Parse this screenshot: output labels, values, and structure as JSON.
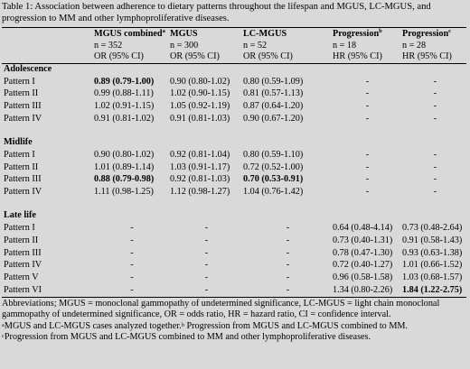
{
  "caption": "Table 1: Association between adherence to dietary patterns throughout the lifespan and MGUS, LC-MGUS, and progression to MM and other lymphoproliferative diseases.",
  "columns": [
    {
      "label": "MGUS combined",
      "sup": "a",
      "n": "n = 352",
      "stat": "OR (95% CI)"
    },
    {
      "label": "MGUS",
      "sup": "",
      "n": "n = 300",
      "stat": "OR (95% CI)"
    },
    {
      "label": "LC-MGUS",
      "sup": "",
      "n": "n = 52",
      "stat": "OR (95% CI)"
    },
    {
      "label": "Progression",
      "sup": "b",
      "n": "n = 18",
      "stat": "HR (95% CI)"
    },
    {
      "label": "Progression",
      "sup": "c",
      "n": "n = 28",
      "stat": "HR (95% CI)"
    }
  ],
  "sections": [
    {
      "title": "Adolescence",
      "rows": [
        {
          "label": "Pattern I",
          "cells": [
            {
              "v": "0.89 (0.79-1.00)",
              "b": true
            },
            {
              "v": "0.90 (0.80-1.02)"
            },
            {
              "v": "0.80 (0.59-1.09)"
            },
            {
              "v": "-"
            },
            {
              "v": "-"
            }
          ]
        },
        {
          "label": "Pattern II",
          "cells": [
            {
              "v": "0.99 (0.88-1.11)"
            },
            {
              "v": "1.02 (0.90-1.15)"
            },
            {
              "v": "0.81 (0.57-1.13)"
            },
            {
              "v": "-"
            },
            {
              "v": "-"
            }
          ]
        },
        {
          "label": "Pattern III",
          "cells": [
            {
              "v": "1.02 (0.91-1.15)"
            },
            {
              "v": "1.05 (0.92-1.19)"
            },
            {
              "v": "0.87 (0.64-1.20)"
            },
            {
              "v": "-"
            },
            {
              "v": "-"
            }
          ]
        },
        {
          "label": "Pattern IV",
          "cells": [
            {
              "v": "0.91 (0.81-1.02)"
            },
            {
              "v": "0.91 (0.81-1.03)"
            },
            {
              "v": "0.90 (0.67-1.20)"
            },
            {
              "v": "-"
            },
            {
              "v": "-"
            }
          ]
        }
      ]
    },
    {
      "title": "Midlife",
      "rows": [
        {
          "label": "Pattern I",
          "cells": [
            {
              "v": "0.90 (0.80-1.02)"
            },
            {
              "v": "0.92 (0.81-1.04)"
            },
            {
              "v": "0.80 (0.59-1.10)"
            },
            {
              "v": "-"
            },
            {
              "v": "-"
            }
          ]
        },
        {
          "label": "Pattern II",
          "cells": [
            {
              "v": "1.01 (0.89-1.14)"
            },
            {
              "v": "1.03 (0.91-1.17)"
            },
            {
              "v": "0.72 (0.52-1.00)"
            },
            {
              "v": "-"
            },
            {
              "v": "-"
            }
          ]
        },
        {
          "label": "Pattern III",
          "cells": [
            {
              "v": "0.88 (0.79-0.98)",
              "b": true
            },
            {
              "v": "0.92 (0.81-1.03)"
            },
            {
              "v": "0.70 (0.53-0.91)",
              "b": true
            },
            {
              "v": "-"
            },
            {
              "v": "-"
            }
          ]
        },
        {
          "label": "Pattern IV",
          "cells": [
            {
              "v": "1.11 (0.98-1.25)"
            },
            {
              "v": "1.12 (0.98-1.27)"
            },
            {
              "v": "1.04 (0.76-1.42)"
            },
            {
              "v": "-"
            },
            {
              "v": "-"
            }
          ]
        }
      ]
    },
    {
      "title": "Late life",
      "rows": [
        {
          "label": "Pattern I",
          "cells": [
            {
              "v": "-"
            },
            {
              "v": "-"
            },
            {
              "v": "-"
            },
            {
              "v": "0.64 (0.48-4.14)"
            },
            {
              "v": "0.73 (0.48-2.64)"
            }
          ]
        },
        {
          "label": "Pattern II",
          "cells": [
            {
              "v": "-"
            },
            {
              "v": "-"
            },
            {
              "v": "-"
            },
            {
              "v": "0.73 (0.40-1.31)"
            },
            {
              "v": "0.91 (0.58-1.43)"
            }
          ]
        },
        {
          "label": "Pattern III",
          "cells": [
            {
              "v": "-"
            },
            {
              "v": "-"
            },
            {
              "v": "-"
            },
            {
              "v": "0.78 (0.47-1.30)"
            },
            {
              "v": "0.93 (0.63-1.38)"
            }
          ]
        },
        {
          "label": "Pattern IV",
          "cells": [
            {
              "v": "-"
            },
            {
              "v": "-"
            },
            {
              "v": "-"
            },
            {
              "v": "0.72 (0.40-1.27)"
            },
            {
              "v": "1.01 (0.66-1.52)"
            }
          ]
        },
        {
          "label": "Pattern V",
          "cells": [
            {
              "v": "-"
            },
            {
              "v": "-"
            },
            {
              "v": "-"
            },
            {
              "v": "0.96 (0.58-1.58)"
            },
            {
              "v": "1.03 (0.68-1.57)"
            }
          ]
        },
        {
          "label": "Pattern VI",
          "cells": [
            {
              "v": "-"
            },
            {
              "v": "-"
            },
            {
              "v": "-"
            },
            {
              "v": "1.34 (0.80-2.26)"
            },
            {
              "v": "1.84 (1.22-2.75)",
              "b": true
            }
          ]
        }
      ]
    }
  ],
  "footnotes": {
    "abbreviations": "Abbreviations; MGUS = monoclonal gammopathy of undetermined significance, LC-MGUS = light chain monoclonal gammopathy of undetermined significance, OR = odds ratio, HR = hazard ratio, CI = confidence interval.",
    "a_mark": "a",
    "a_text": "MGUS and LC-MGUS cases analyzed together.",
    "b_mark": "b",
    "b_text": " Progression from MGUS and LC-MGUS combined to MM.",
    "c_mark": "c",
    "c_text": "Progression from MGUS and LC-MGUS combined to MM and other lymphoproliferative diseases."
  }
}
